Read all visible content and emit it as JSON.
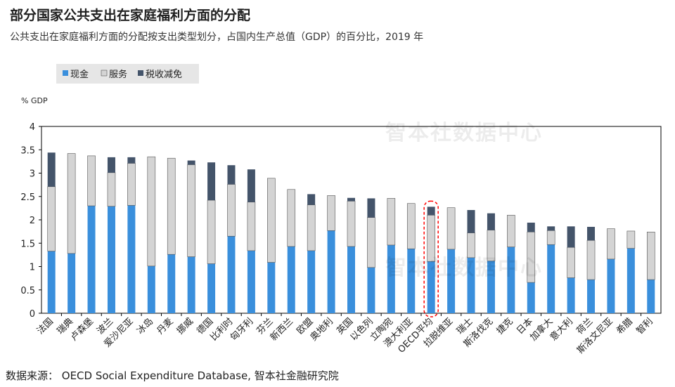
{
  "header": {
    "title": "部分国家公共支出在家庭福利方面的分配",
    "subtitle": "公共支出在家庭福利方面的分配按支出类型划分，占国内生产总值（GDP）的百分比，2019 年"
  },
  "footer": {
    "source": "数据来源： OECD Social Expenditure Database, 智本社金融研究院"
  },
  "watermark": {
    "text": "智本社数据中心"
  },
  "colors": {
    "cash": "#3a8fdc",
    "services": "#d4d4d4",
    "tax": "#44546a",
    "highlight": "#ff0000",
    "axis": "#000000"
  },
  "chart_data": {
    "type": "bar",
    "stacked": true,
    "title": "部分国家公共支出在家庭福利方面的分配",
    "ylabel": "% GDP",
    "ylim": [
      0,
      4
    ],
    "yticks": [
      "0",
      "0.5",
      "1",
      "1.5",
      "2",
      "2.5",
      "3",
      "3.5",
      "4"
    ],
    "legend_position": "top-left",
    "highlight_category": "OECD平均",
    "categories": [
      "法国",
      "瑞典",
      "卢森堡",
      "波兰",
      "爱沙尼亚",
      "冰岛",
      "丹麦",
      "挪威",
      "德国",
      "比利时",
      "匈牙利",
      "芬兰",
      "新西兰",
      "欧盟",
      "奥地利",
      "英国",
      "以色列",
      "立陶宛",
      "澳大利亚",
      "OECD平均",
      "拉脱维亚",
      "瑞士",
      "斯洛伐克",
      "捷克",
      "日本",
      "加拿大",
      "意大利",
      "荷兰",
      "斯洛文尼亚",
      "希腊",
      "智利"
    ],
    "series": [
      {
        "name": "现金",
        "key": "cash",
        "values": [
          1.33,
          1.28,
          2.3,
          2.29,
          2.31,
          1.01,
          1.26,
          1.21,
          1.06,
          1.65,
          1.34,
          1.09,
          1.43,
          1.34,
          1.77,
          1.43,
          0.98,
          1.46,
          1.38,
          1.11,
          1.37,
          1.19,
          1.12,
          1.42,
          0.66,
          1.47,
          0.76,
          0.72,
          1.16,
          1.39,
          0.72
        ]
      },
      {
        "name": "服务",
        "key": "services",
        "values": [
          1.38,
          2.14,
          1.07,
          0.72,
          0.9,
          2.34,
          2.06,
          1.97,
          1.36,
          1.11,
          1.04,
          1.8,
          1.22,
          0.98,
          0.75,
          0.97,
          1.07,
          1.0,
          0.97,
          0.99,
          0.89,
          0.53,
          0.66,
          0.68,
          1.08,
          0.3,
          0.65,
          0.84,
          0.65,
          0.37,
          1.02
        ]
      },
      {
        "name": "税收减免",
        "key": "tax",
        "values": [
          0.73,
          0.0,
          0.0,
          0.33,
          0.13,
          0.0,
          0.0,
          0.09,
          0.81,
          0.41,
          0.7,
          0.0,
          0.0,
          0.23,
          0.0,
          0.07,
          0.41,
          0.0,
          0.0,
          0.18,
          0.0,
          0.49,
          0.36,
          0.0,
          0.2,
          0.09,
          0.45,
          0.29,
          0.0,
          0.0,
          0.0
        ]
      }
    ]
  }
}
